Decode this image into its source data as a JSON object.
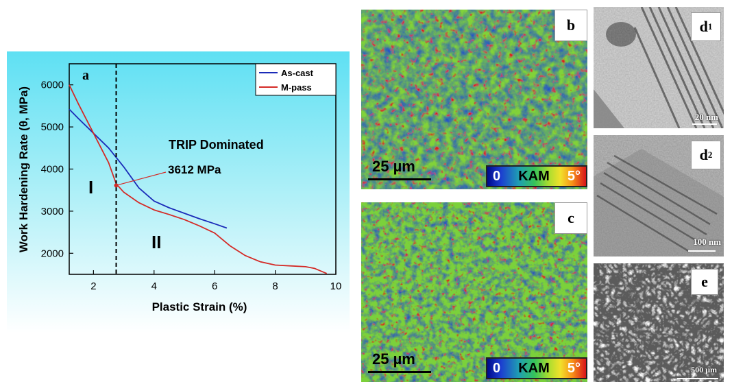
{
  "chart_data": {
    "type": "line",
    "panel_label": "a",
    "xlabel": "Plastic Strain (%)",
    "ylabel": "Work Hardening Rate (θ, MPa)",
    "xlim": [
      1.2,
      10
    ],
    "ylim": [
      1500,
      6500
    ],
    "x_ticks": [
      2,
      4,
      6,
      8,
      10
    ],
    "y_ticks": [
      2000,
      3000,
      4000,
      5000,
      6000
    ],
    "legend_position": "top-right",
    "series": [
      {
        "name": "As-cast",
        "color": "#1a2bb8",
        "x": [
          1.2,
          1.5,
          2.0,
          2.5,
          3.0,
          3.5,
          4.0,
          4.5,
          5.0,
          5.5,
          6.0,
          6.4
        ],
        "y": [
          5420,
          5200,
          4850,
          4500,
          4050,
          3550,
          3240,
          3080,
          2950,
          2820,
          2700,
          2600
        ]
      },
      {
        "name": "M-pass",
        "color": "#d42a26",
        "x": [
          1.2,
          1.5,
          2.0,
          2.5,
          2.75,
          3.0,
          3.5,
          4.0,
          4.5,
          5.0,
          5.5,
          6.0,
          6.5,
          7.0,
          7.5,
          8.0,
          8.5,
          9.0,
          9.3,
          9.7
        ],
        "y": [
          6000,
          5550,
          4850,
          4150,
          3650,
          3450,
          3200,
          3030,
          2920,
          2800,
          2650,
          2480,
          2180,
          1950,
          1800,
          1720,
          1700,
          1680,
          1640,
          1520
        ]
      }
    ],
    "vertical_line_x": 2.75,
    "annotations": {
      "trip": "TRIP Dominated",
      "stress": "3612 MPa",
      "region_one": "I",
      "region_two": "II"
    },
    "stress_point": {
      "x": 2.75,
      "y": 3612
    }
  },
  "panels": {
    "b": {
      "label": "b",
      "scale": "25 µm",
      "legend_min": "0",
      "legend_name": "KAM",
      "legend_max": "5°"
    },
    "c": {
      "label": "c",
      "scale": "25 µm",
      "legend_min": "0",
      "legend_name": "KAM",
      "legend_max": "5°"
    },
    "d1": {
      "label": "d",
      "sub": "1",
      "scale": "20 nm"
    },
    "d2": {
      "label": "d",
      "sub": "2",
      "scale": "100 nm"
    },
    "e": {
      "label": "e",
      "scale": "500 µm"
    }
  }
}
